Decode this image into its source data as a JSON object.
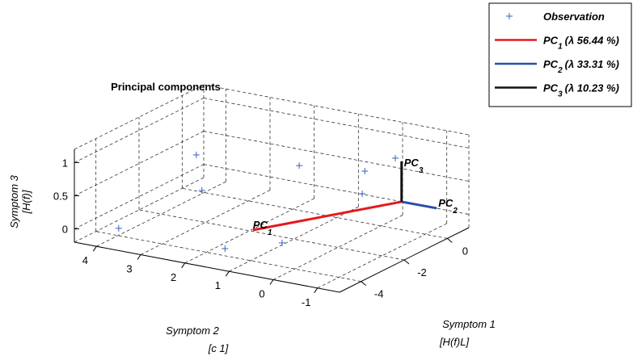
{
  "chart_data": {
    "type": "scatter3d",
    "title": "Principal components",
    "xlabel": [
      "Symptom 1",
      "[H(f)L]"
    ],
    "ylabel": [
      "Symptom 2",
      "[c 1]"
    ],
    "zlabel": [
      "Symptom 3",
      "[H(f)]"
    ],
    "xlim": [
      -5,
      1
    ],
    "xticks": [
      -4,
      -2,
      0
    ],
    "ylim": [
      -1.5,
      4.5
    ],
    "yticks": [
      4,
      3,
      2,
      1,
      0,
      -1
    ],
    "zlim": [
      -0.2,
      1.2
    ],
    "zticks": [
      0,
      0.5,
      1
    ],
    "grid": true,
    "legend_position": "outside-top-right",
    "series": [
      {
        "name": "Observation",
        "kind": "points",
        "color": "#3b5fc0",
        "x": [
          -4.4,
          -2.93,
          -3.02,
          -2.34,
          -1.88,
          -1.2,
          -1.51,
          -4.41,
          -3.3
        ],
        "y": [
          3.79,
          2.75,
          2.58,
          0.71,
          -0.55,
          -0.16,
          -1.06,
          1.38,
          0.63
        ],
        "z": [
          0,
          1,
          0.5,
          1,
          1,
          0.5,
          1.2,
          0,
          0
        ]
      },
      {
        "name_parts": [
          "PC",
          "1",
          "(λ 56.44 %)"
        ],
        "kind": "vector",
        "color": "#e41a1c",
        "x": [
          -1.24,
          -5.04
        ],
        "y": [
          -1.07,
          0.44
        ],
        "z": [
          0.5,
          0.5
        ]
      },
      {
        "name_parts": [
          "PC",
          "2",
          "(λ 33.31 %)"
        ],
        "kind": "vector",
        "color": "#2a4fa8",
        "x": [
          -1.24,
          -1.23
        ],
        "y": [
          -1.07,
          -1.86
        ],
        "z": [
          0.5,
          0.5
        ]
      },
      {
        "name_parts": [
          "PC",
          "3",
          "(λ 10.23 %)"
        ],
        "kind": "vector",
        "color": "#111111",
        "x": [
          -1.24,
          -1.24
        ],
        "y": [
          -1.07,
          -1.07
        ],
        "z": [
          0.5,
          1.11
        ]
      }
    ]
  }
}
